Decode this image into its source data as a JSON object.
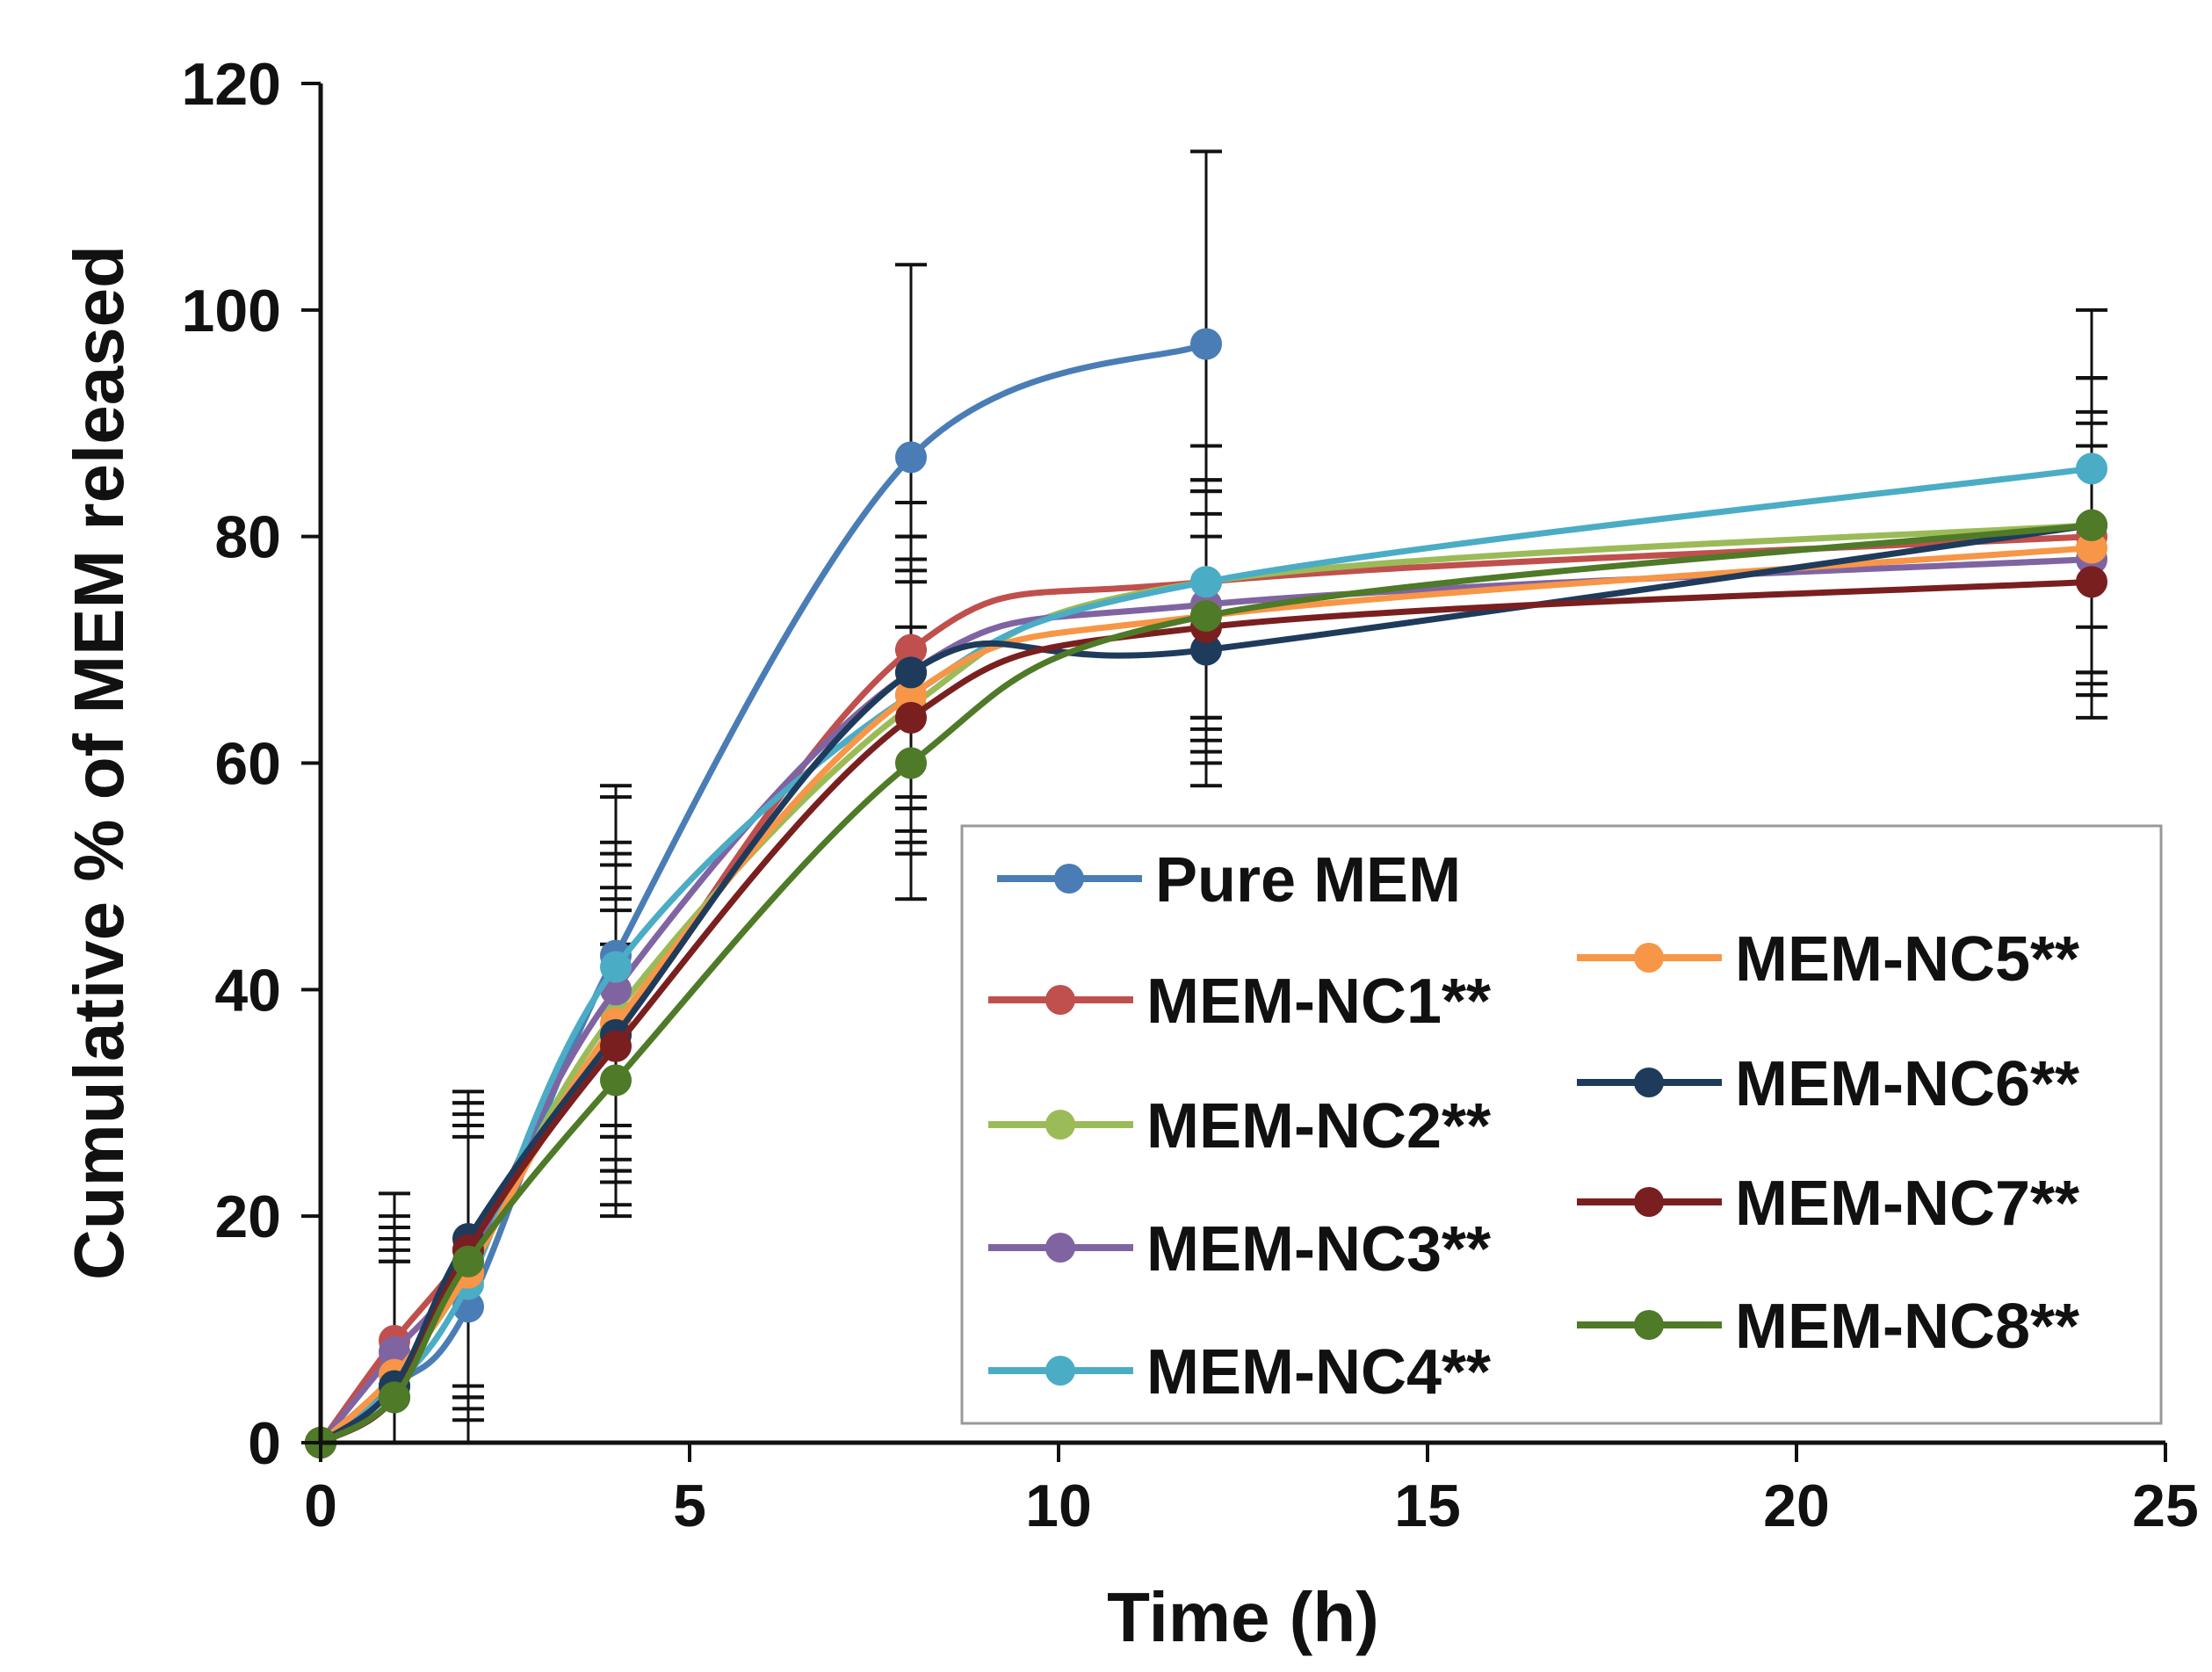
{
  "chart_data": {
    "type": "line",
    "title": "",
    "xlabel": "Time (h)",
    "ylabel": "Cumulative % of MEM released",
    "xlim": [
      0,
      25
    ],
    "ylim": [
      0,
      120
    ],
    "xticks": [
      "0",
      "5",
      "10",
      "15",
      "20",
      "25"
    ],
    "yticks": [
      "0",
      "20",
      "40",
      "60",
      "80",
      "100",
      "120"
    ],
    "x": [
      0,
      1,
      2,
      4,
      8,
      12,
      24
    ],
    "legend_position": "bottom-right",
    "series": [
      {
        "name": "Pure MEM",
        "color": "#4a7db5",
        "x": [
          0,
          1,
          2,
          4,
          8,
          12
        ],
        "values": [
          0,
          5,
          12,
          43,
          87,
          97
        ],
        "errors": [
          0,
          13,
          18,
          15,
          17,
          17
        ]
      },
      {
        "name": "MEM-NC1**",
        "color": "#c0504d",
        "x": [
          0,
          1,
          2,
          4,
          8,
          12,
          24
        ],
        "values": [
          0,
          9,
          17,
          36,
          70,
          76,
          80
        ],
        "errors": [
          0,
          13,
          13,
          15,
          13,
          12,
          14
        ]
      },
      {
        "name": "MEM-NC2**",
        "color": "#9bbb59",
        "x": [
          0,
          1,
          2,
          4,
          8,
          12,
          24
        ],
        "values": [
          0,
          6,
          15,
          38,
          65,
          76,
          81
        ],
        "errors": [
          0,
          12,
          13,
          14,
          12,
          12,
          13
        ]
      },
      {
        "name": "MEM-NC3**",
        "color": "#8064a2",
        "x": [
          0,
          1,
          2,
          4,
          8,
          12,
          24
        ],
        "values": [
          0,
          8,
          16,
          40,
          68,
          74,
          78
        ],
        "errors": [
          0,
          12,
          12,
          13,
          12,
          11,
          12
        ]
      },
      {
        "name": "MEM-NC4**",
        "color": "#4bacc6",
        "x": [
          0,
          1,
          2,
          4,
          8,
          12,
          24
        ],
        "values": [
          0,
          5,
          14,
          42,
          66,
          76,
          86
        ],
        "errors": [
          0,
          14,
          14,
          15,
          14,
          12,
          14
        ]
      },
      {
        "name": "MEM-NC5**",
        "color": "#f79646",
        "x": [
          0,
          1,
          2,
          4,
          8,
          12,
          24
        ],
        "values": [
          0,
          6,
          15,
          37,
          66,
          73,
          79
        ],
        "errors": [
          0,
          12,
          12,
          12,
          12,
          11,
          12
        ]
      },
      {
        "name": "MEM-NC6**",
        "color": "#1f3b5c",
        "x": [
          0,
          1,
          2,
          4,
          8,
          12,
          24
        ],
        "values": [
          0,
          5,
          18,
          36,
          68,
          70,
          81
        ],
        "errors": [
          0,
          12,
          13,
          12,
          12,
          12,
          13
        ]
      },
      {
        "name": "MEM-NC7**",
        "color": "#7a1f1f",
        "x": [
          0,
          1,
          2,
          4,
          8,
          12,
          24
        ],
        "values": [
          0,
          4,
          17,
          35,
          64,
          72,
          76
        ],
        "errors": [
          0,
          12,
          12,
          12,
          12,
          12,
          12
        ]
      },
      {
        "name": "MEM-NC8**",
        "color": "#4f7a28",
        "x": [
          0,
          1,
          2,
          4,
          8,
          12,
          24
        ],
        "values": [
          0,
          4,
          16,
          32,
          60,
          73,
          81
        ],
        "errors": [
          0,
          12,
          12,
          12,
          12,
          12,
          13
        ]
      }
    ]
  }
}
